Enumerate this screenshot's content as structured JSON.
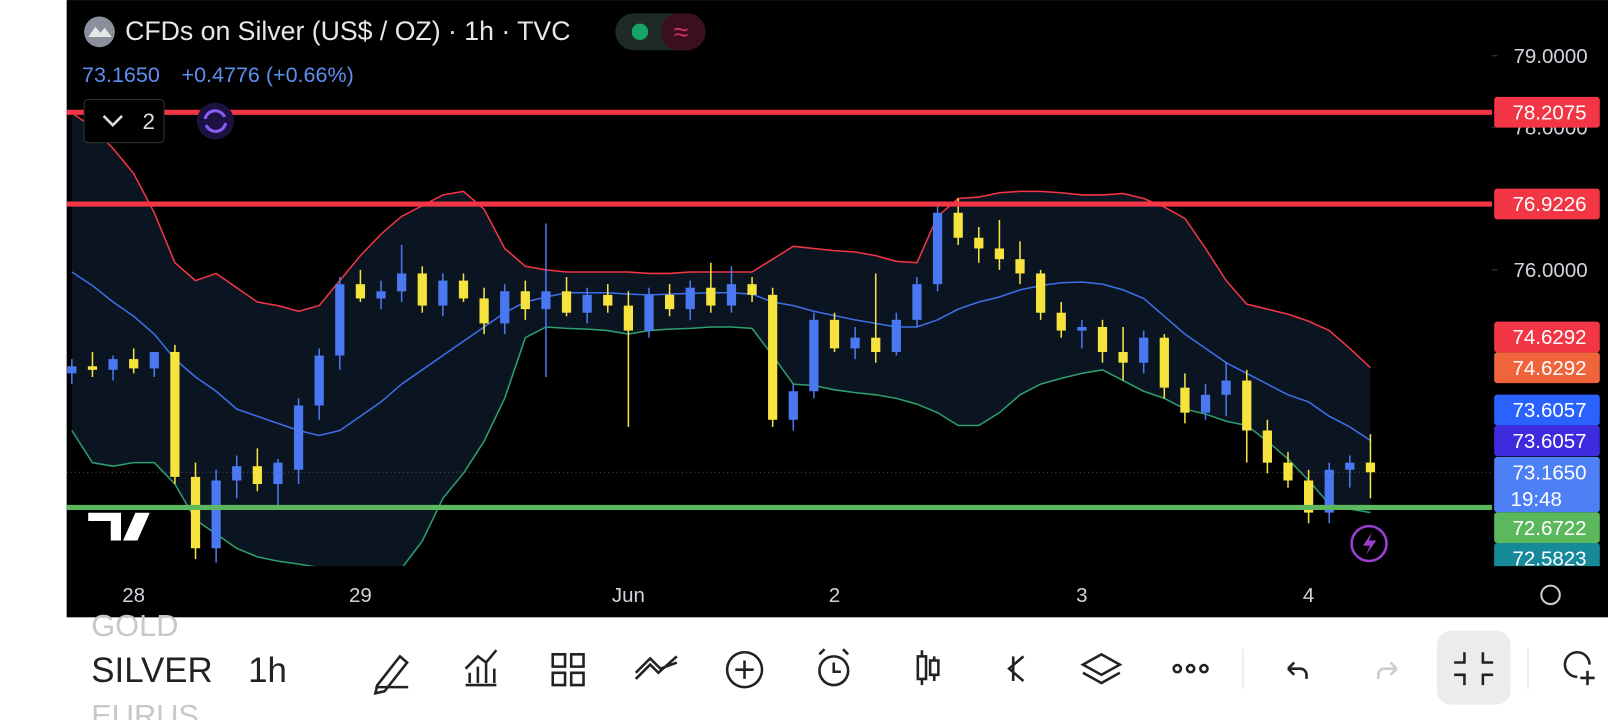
{
  "header": {
    "title": "CFDs on Silver (US$ / OZ) · 1h · TVC",
    "last_price": "73.1650",
    "change": "+0.4776 (+0.66%)",
    "indicator_count": "2"
  },
  "toolbar": {
    "symbols": [
      "GOLD",
      "SILVER",
      "EURUS"
    ],
    "interval": "1h"
  },
  "chart_data": {
    "type": "candlestick",
    "up_color": "#4a78f0",
    "down_color": "#f7e33e",
    "categories": [
      null,
      null,
      null,
      "28",
      null,
      null,
      null,
      null,
      null,
      null,
      null,
      null,
      null,
      null,
      "29",
      null,
      null,
      null,
      null,
      null,
      null,
      null,
      null,
      null,
      null,
      null,
      null,
      "Jun",
      null,
      null,
      null,
      null,
      null,
      null,
      null,
      null,
      null,
      "2",
      null,
      null,
      null,
      null,
      null,
      null,
      null,
      null,
      null,
      null,
      null,
      "3",
      null,
      null,
      null,
      null,
      null,
      null,
      null,
      null,
      null,
      null,
      "4",
      null,
      null,
      null
    ],
    "ohlc": [
      [
        74.55,
        74.75,
        74.4,
        74.65
      ],
      [
        74.65,
        74.85,
        74.5,
        74.6
      ],
      [
        74.6,
        74.8,
        74.45,
        74.75
      ],
      [
        74.75,
        74.9,
        74.55,
        74.62
      ],
      [
        74.62,
        74.8,
        74.5,
        74.85
      ],
      [
        74.85,
        74.95,
        73.0,
        73.1
      ],
      [
        73.1,
        73.3,
        71.95,
        72.1
      ],
      [
        72.1,
        73.2,
        71.9,
        73.05
      ],
      [
        73.05,
        73.4,
        72.8,
        73.25
      ],
      [
        73.25,
        73.5,
        72.9,
        73.0
      ],
      [
        73.0,
        73.35,
        72.7,
        73.3
      ],
      [
        73.2,
        74.2,
        73.0,
        74.1
      ],
      [
        74.1,
        74.9,
        73.9,
        74.8
      ],
      [
        74.8,
        75.9,
        74.6,
        75.8
      ],
      [
        75.8,
        76.0,
        75.55,
        75.6
      ],
      [
        75.6,
        75.85,
        75.45,
        75.7
      ],
      [
        75.7,
        76.35,
        75.55,
        75.95
      ],
      [
        75.95,
        76.05,
        75.4,
        75.5
      ],
      [
        75.5,
        75.95,
        75.35,
        75.85
      ],
      [
        75.85,
        75.95,
        75.55,
        75.6
      ],
      [
        75.6,
        75.75,
        75.1,
        75.25
      ],
      [
        75.25,
        75.8,
        75.1,
        75.7
      ],
      [
        75.7,
        75.85,
        75.3,
        75.45
      ],
      [
        75.45,
        76.65,
        74.5,
        75.7
      ],
      [
        75.7,
        75.9,
        75.35,
        75.4
      ],
      [
        75.4,
        75.75,
        75.25,
        75.65
      ],
      [
        75.65,
        75.8,
        75.4,
        75.5
      ],
      [
        75.5,
        75.7,
        73.8,
        75.15
      ],
      [
        75.15,
        75.75,
        75.05,
        75.65
      ],
      [
        75.65,
        75.8,
        75.35,
        75.45
      ],
      [
        75.45,
        75.85,
        75.3,
        75.75
      ],
      [
        75.75,
        76.1,
        75.4,
        75.5
      ],
      [
        75.5,
        76.05,
        75.4,
        75.8
      ],
      [
        75.8,
        75.9,
        75.55,
        75.65
      ],
      [
        75.65,
        75.75,
        73.8,
        73.9
      ],
      [
        73.9,
        74.4,
        73.75,
        74.3
      ],
      [
        74.3,
        75.4,
        74.2,
        75.3
      ],
      [
        75.3,
        75.4,
        74.85,
        74.9
      ],
      [
        74.9,
        75.2,
        74.75,
        75.05
      ],
      [
        75.05,
        75.95,
        74.7,
        74.85
      ],
      [
        74.85,
        75.4,
        74.8,
        75.3
      ],
      [
        75.3,
        75.9,
        75.2,
        75.8
      ],
      [
        75.8,
        76.95,
        75.7,
        76.8
      ],
      [
        76.8,
        77.0,
        76.35,
        76.45
      ],
      [
        76.45,
        76.6,
        76.1,
        76.3
      ],
      [
        76.3,
        76.7,
        76.0,
        76.15
      ],
      [
        76.15,
        76.4,
        75.8,
        75.95
      ],
      [
        75.95,
        76.0,
        75.3,
        75.4
      ],
      [
        75.4,
        75.55,
        75.05,
        75.15
      ],
      [
        75.15,
        75.3,
        74.9,
        75.2
      ],
      [
        75.2,
        75.3,
        74.7,
        74.85
      ],
      [
        74.85,
        75.2,
        74.45,
        74.7
      ],
      [
        74.7,
        75.15,
        74.55,
        75.05
      ],
      [
        75.05,
        75.1,
        74.2,
        74.35
      ],
      [
        74.35,
        74.55,
        73.85,
        74.0
      ],
      [
        74.0,
        74.4,
        73.9,
        74.25
      ],
      [
        74.25,
        74.7,
        73.95,
        74.45
      ],
      [
        74.45,
        74.6,
        73.3,
        73.75
      ],
      [
        73.75,
        73.9,
        73.15,
        73.3
      ],
      [
        73.3,
        73.45,
        72.95,
        73.05
      ],
      [
        73.05,
        73.2,
        72.45,
        72.6
      ],
      [
        72.6,
        73.3,
        72.45,
        73.2
      ],
      [
        73.2,
        73.4,
        72.95,
        73.3
      ],
      [
        73.3,
        73.7,
        72.8,
        73.165
      ]
    ],
    "series": [
      {
        "color": "#f23645",
        "values": [
          78.2,
          78.0,
          77.7,
          77.35,
          76.8,
          76.1,
          75.85,
          75.95,
          75.75,
          75.55,
          75.5,
          75.42,
          75.5,
          75.85,
          76.2,
          76.5,
          76.75,
          76.9,
          77.05,
          77.1,
          76.85,
          76.3,
          76.05,
          76.0,
          75.97,
          75.97,
          75.97,
          75.97,
          75.95,
          75.95,
          75.97,
          75.97,
          75.97,
          75.97,
          76.15,
          76.33,
          76.3,
          76.27,
          76.25,
          76.2,
          76.12,
          76.1,
          76.75,
          77.0,
          77.02,
          77.08,
          77.1,
          77.1,
          77.08,
          77.05,
          77.05,
          77.07,
          77.0,
          76.88,
          76.72,
          76.3,
          75.85,
          75.52,
          75.45,
          75.38,
          75.28,
          75.15,
          74.9,
          74.63
        ]
      },
      {
        "color": "#3d6fe6",
        "values": [
          75.97,
          75.78,
          75.55,
          75.35,
          75.1,
          74.75,
          74.5,
          74.3,
          74.05,
          73.95,
          73.85,
          73.75,
          73.68,
          73.75,
          73.95,
          74.15,
          74.4,
          74.6,
          74.8,
          75.0,
          75.2,
          75.4,
          75.55,
          75.62,
          75.68,
          75.68,
          75.68,
          75.66,
          75.65,
          75.66,
          75.67,
          75.68,
          75.68,
          75.66,
          75.55,
          75.5,
          75.42,
          75.36,
          75.3,
          75.25,
          75.2,
          75.2,
          75.3,
          75.45,
          75.55,
          75.62,
          75.72,
          75.78,
          75.82,
          75.83,
          75.8,
          75.72,
          75.6,
          75.35,
          75.1,
          74.9,
          74.7,
          74.55,
          74.4,
          74.25,
          74.15,
          73.95,
          73.8,
          73.61
        ]
      },
      {
        "color": "#2e9e6e",
        "values": [
          73.75,
          73.3,
          73.25,
          73.3,
          73.3,
          73.0,
          72.5,
          72.3,
          72.1,
          71.98,
          71.92,
          71.88,
          71.83,
          71.8,
          71.8,
          71.8,
          71.82,
          72.2,
          72.8,
          73.15,
          73.6,
          74.2,
          75.05,
          75.2,
          75.18,
          75.17,
          75.15,
          75.1,
          75.15,
          75.17,
          75.18,
          75.2,
          75.2,
          75.18,
          74.8,
          74.4,
          74.38,
          74.32,
          74.28,
          74.25,
          74.2,
          74.12,
          74.0,
          73.82,
          73.82,
          74.0,
          74.25,
          74.4,
          74.48,
          74.55,
          74.6,
          74.45,
          74.3,
          74.2,
          74.05,
          73.98,
          73.88,
          73.82,
          73.6,
          73.35,
          73.05,
          72.72,
          72.65,
          72.6
        ]
      }
    ],
    "ylim": [
      71.85,
      79.78
    ],
    "yticks": [
      {
        "value": 79,
        "label": "79.0000"
      },
      {
        "value": 78,
        "label": "78.0000"
      },
      {
        "value": 76,
        "label": "76.0000"
      }
    ],
    "levels": [
      {
        "value": 78.2075,
        "color": "#f23645"
      },
      {
        "value": 76.9226,
        "color": "#f23645"
      },
      {
        "value": 72.6722,
        "color": "#5cb85c"
      }
    ],
    "price_labels": [
      {
        "value": 74.6292,
        "color": "#f23645"
      },
      {
        "value": 74.6292,
        "color": "#f0643c"
      },
      {
        "value": 73.6057,
        "color": "#2962ff"
      },
      {
        "value": 73.6057,
        "color": "#3f2bdf"
      },
      {
        "value": 73.165,
        "label": "73.1650",
        "countdown": "19:48",
        "color": "#4d7ff5"
      },
      {
        "value": 72.5823,
        "color": "#178a9a"
      }
    ]
  }
}
